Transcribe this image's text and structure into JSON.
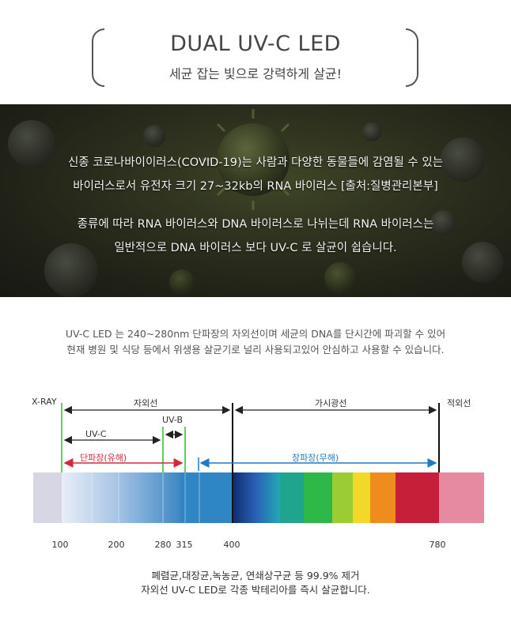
{
  "header": {
    "title": "DUAL UV-C LED",
    "subtitle": "세균 잡는 빛으로 강력하게 살균!"
  },
  "banner": {
    "line1": "신종 코로나바이이러스(COVID-19)는 사람과 다양한 동물들에 감염될 수 있는",
    "line2": "바이러스로서 유전자 크기 27~32kb의 RNA 바이러스 [출처:질병관리본부]",
    "line3": "종류에 따라 RNA 바이러스와 DNA 바이러스로 나뉘는데 RNA 바이러스는",
    "line4": "일반적으로 DNA 바이러스 보다 UV-C 로 살균이 쉽습니다."
  },
  "description": {
    "line1": "UV-C LED 는 240~280nm 단파장의 자외선이며 세균의 DNA를 단시간에 파괴할 수 있어",
    "line2": "현재 병원 및 식당 등에서 위생용 살균기로 널리 사용되고있어 안심하고 사용할 수 있습니다."
  },
  "spectrum": {
    "labels": {
      "xray": "X-RAY",
      "uv": "자외선",
      "visible": "가시광선",
      "infrared": "적외선",
      "uvb": "UV-B",
      "uvc": "UV-C",
      "short_wave": "단파장(유해)",
      "long_wave": "장파장(무해)"
    },
    "ticks": [
      "100",
      "200",
      "280",
      "315",
      "400",
      "780"
    ],
    "colors": {
      "green_marker": "#5fd15f",
      "short_wave": "#d22a3c",
      "long_wave": "#1f7bc4",
      "xray_band": "#d6d6e4",
      "infrared_band": "#e58aa0"
    }
  },
  "footer": {
    "line1": "폐렴균,대장균,녹농균, 연쇄상구균 등 99.9% 제거",
    "line2": "자외선 UV-C LED로 각종 박테리아를 즉시 살균합니다."
  }
}
